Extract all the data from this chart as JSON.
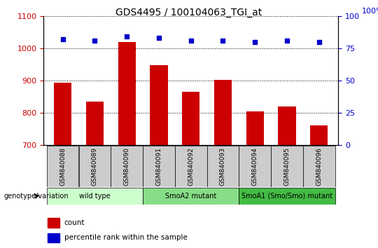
{
  "title": "GDS4495 / 100104063_TGI_at",
  "samples": [
    "GSM840088",
    "GSM840089",
    "GSM840090",
    "GSM840091",
    "GSM840092",
    "GSM840093",
    "GSM840094",
    "GSM840095",
    "GSM840096"
  ],
  "counts": [
    893,
    836,
    1020,
    948,
    865,
    903,
    804,
    820,
    762
  ],
  "percentile_ranks": [
    82,
    81,
    84,
    83,
    81,
    81,
    80,
    81,
    80
  ],
  "ylim_left": [
    700,
    1100
  ],
  "ylim_right": [
    0,
    100
  ],
  "yticks_left": [
    700,
    800,
    900,
    1000,
    1100
  ],
  "yticks_right": [
    0,
    25,
    50,
    75,
    100
  ],
  "bar_color": "#cc0000",
  "dot_color": "#0000cc",
  "groups": [
    {
      "label": "wild type",
      "n": 3,
      "color": "#ccffcc"
    },
    {
      "label": "SmoA2 mutant",
      "n": 3,
      "color": "#88dd88"
    },
    {
      "label": "SmoA1 (Smo/Smo) mutant",
      "n": 3,
      "color": "#44bb44"
    }
  ],
  "legend_count_label": "count",
  "legend_pct_label": "percentile rank within the sample",
  "genotype_label": "genotype/variation",
  "tick_color_left": "#cc0000",
  "tick_color_right": "#0000cc",
  "sample_bg": "#cccccc",
  "plot_bg": "#ffffff"
}
